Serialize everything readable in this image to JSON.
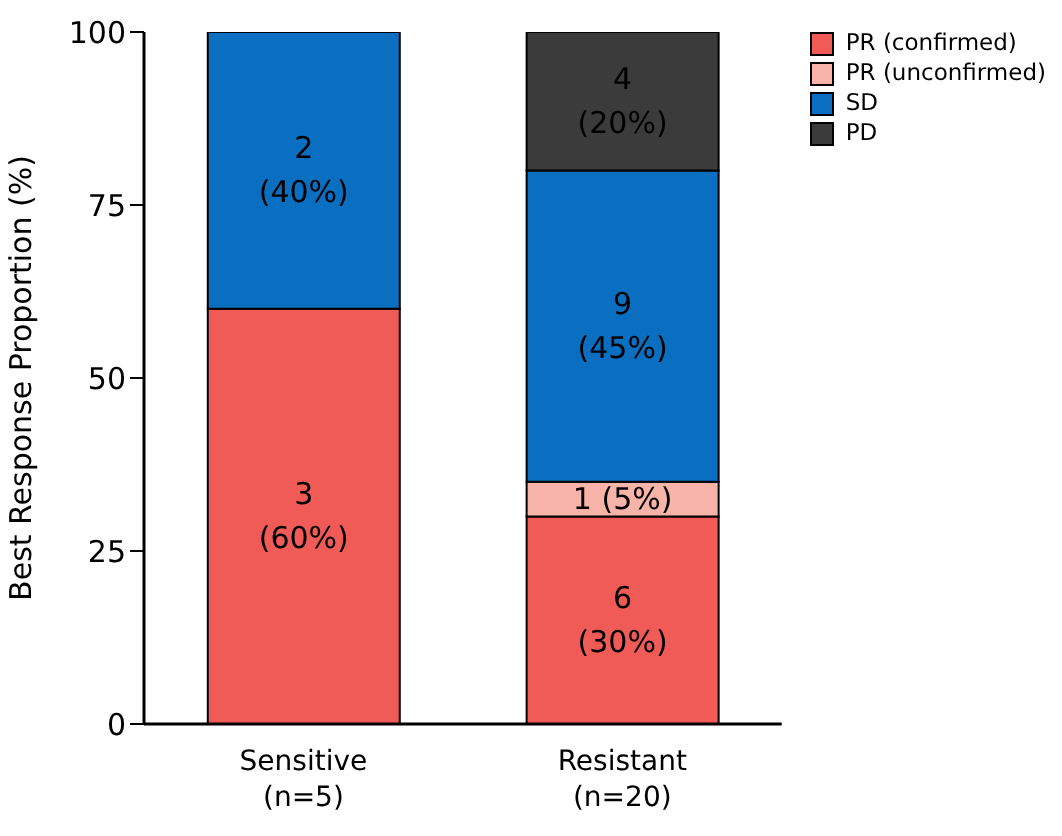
{
  "chart_data": {
    "type": "bar",
    "stacked": true,
    "ylabel": "Best Response Proportion (%)",
    "categories": [
      "Sensitive\n(n=5)",
      "Resistant\n(n=20)"
    ],
    "ylim": [
      0,
      100
    ],
    "yticks": [
      0,
      25,
      50,
      75,
      100
    ],
    "grid": false,
    "legend": "top right",
    "series": [
      {
        "name": "PR (confirmed)",
        "color": "#f05a57",
        "values": [
          60,
          30
        ],
        "value_labels": [
          "3\n(60%)",
          "6\n(30%)"
        ]
      },
      {
        "name": "PR (unconfirmed)",
        "color": "#f8b4a8",
        "values": [
          0,
          5
        ],
        "value_labels": [
          null,
          "1 (5%)"
        ]
      },
      {
        "name": "SD",
        "color": "#0b6fc1",
        "values": [
          40,
          45
        ],
        "value_labels": [
          "2\n(40%)",
          "9\n(45%)"
        ]
      },
      {
        "name": "PD",
        "color": "#3b3b3b",
        "values": [
          0,
          20
        ],
        "value_labels": [
          null,
          "4\n(20%)"
        ]
      }
    ]
  }
}
